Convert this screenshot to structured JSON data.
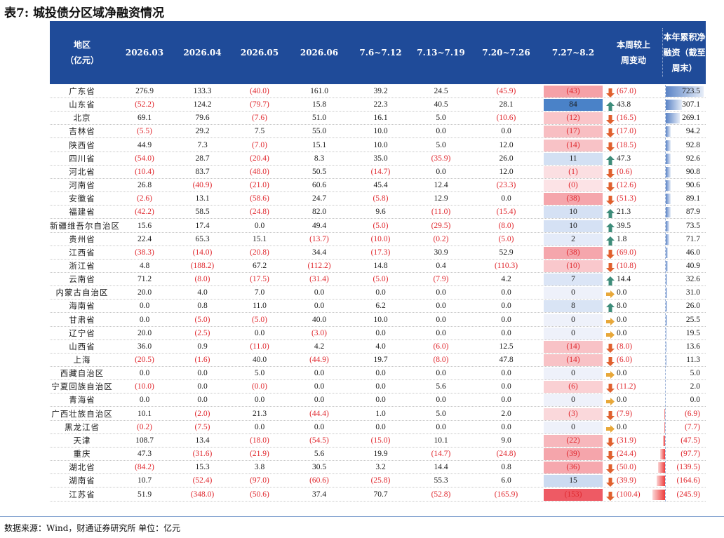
{
  "title": "表7: 城投债分区域净融资情况",
  "headers": [
    "地区\n（亿元）",
    "2026.03",
    "2026.04",
    "2026.05",
    "2026.06",
    "7.6~7.12",
    "7.13~7.19",
    "7.20~7.26",
    "7.27~8.2",
    "本周较上\n周变动",
    "本年累积净\n融资（截至\n周末）"
  ],
  "colors": {
    "header_bg": "#1f4b99",
    "negative": "#e0282e",
    "up_arrow": "#3d8c7a",
    "down_arrow": "#e0602e",
    "flat_arrow": "#e8a83a"
  },
  "rows": [
    {
      "region": "广东省",
      "v": [
        "276.9",
        "133.3",
        "(40.0)",
        "161.0",
        "39.2",
        "24.5",
        "(45.9)"
      ],
      "w": "(43)",
      "wn": -43,
      "dir": "down",
      "chg": "(67.0)",
      "ytd": "723.5",
      "yn": 723.5
    },
    {
      "region": "山东省",
      "v": [
        "(52.2)",
        "124.2",
        "(79.7)",
        "15.8",
        "22.3",
        "40.5",
        "28.1"
      ],
      "w": "84",
      "wn": 84,
      "dir": "up",
      "chg": "43.8",
      "ytd": "307.1",
      "yn": 307.1
    },
    {
      "region": "北京",
      "v": [
        "69.1",
        "79.6",
        "(7.6)",
        "51.0",
        "16.1",
        "5.0",
        "(10.6)"
      ],
      "w": "(12)",
      "wn": -12,
      "dir": "down",
      "chg": "(16.5)",
      "ytd": "269.1",
      "yn": 269.1
    },
    {
      "region": "吉林省",
      "v": [
        "(5.5)",
        "29.2",
        "7.5",
        "55.0",
        "10.0",
        "0.0",
        "0.0"
      ],
      "w": "(17)",
      "wn": -17,
      "dir": "down",
      "chg": "(17.0)",
      "ytd": "94.2",
      "yn": 94.2
    },
    {
      "region": "陕西省",
      "v": [
        "44.9",
        "7.3",
        "(7.0)",
        "15.1",
        "10.0",
        "5.0",
        "12.0"
      ],
      "w": "(14)",
      "wn": -14,
      "dir": "down",
      "chg": "(18.5)",
      "ytd": "92.8",
      "yn": 92.8
    },
    {
      "region": "四川省",
      "v": [
        "(54.0)",
        "28.7",
        "(20.4)",
        "8.3",
        "35.0",
        "(35.9)",
        "26.0"
      ],
      "w": "11",
      "wn": 11,
      "dir": "up",
      "chg": "47.3",
      "ytd": "92.6",
      "yn": 92.6
    },
    {
      "region": "河北省",
      "v": [
        "(10.4)",
        "83.7",
        "(48.0)",
        "50.5",
        "(14.7)",
        "0.0",
        "12.0"
      ],
      "w": "(1)",
      "wn": -1,
      "dir": "down",
      "chg": "(0.6)",
      "ytd": "90.8",
      "yn": 90.8
    },
    {
      "region": "河南省",
      "v": [
        "26.8",
        "(40.9)",
        "(21.0)",
        "60.6",
        "45.4",
        "12.4",
        "(23.3)"
      ],
      "w": "(0)",
      "wn": -0.3,
      "dir": "down",
      "chg": "(12.6)",
      "ytd": "90.6",
      "yn": 90.6
    },
    {
      "region": "安徽省",
      "v": [
        "(2.6)",
        "13.1",
        "(58.6)",
        "24.7",
        "(5.8)",
        "12.9",
        "0.0"
      ],
      "w": "(38)",
      "wn": -38,
      "dir": "down",
      "chg": "(51.3)",
      "ytd": "89.1",
      "yn": 89.1
    },
    {
      "region": "福建省",
      "v": [
        "(42.2)",
        "58.5",
        "(24.8)",
        "82.0",
        "9.6",
        "(11.0)",
        "(15.4)"
      ],
      "w": "10",
      "wn": 10,
      "dir": "up",
      "chg": "21.3",
      "ytd": "87.9",
      "yn": 87.9
    },
    {
      "region": "新疆维吾尔自治区",
      "v": [
        "15.6",
        "17.4",
        "0.0",
        "49.4",
        "(5.0)",
        "(29.5)",
        "(8.0)"
      ],
      "w": "10",
      "wn": 10,
      "dir": "up",
      "chg": "39.5",
      "ytd": "73.5",
      "yn": 73.5
    },
    {
      "region": "贵州省",
      "v": [
        "22.4",
        "65.3",
        "15.1",
        "(13.7)",
        "(10.0)",
        "(0.2)",
        "(5.0)"
      ],
      "w": "2",
      "wn": 2,
      "dir": "up",
      "chg": "1.8",
      "ytd": "71.7",
      "yn": 71.7
    },
    {
      "region": "江西省",
      "v": [
        "(38.3)",
        "(14.0)",
        "(20.8)",
        "34.4",
        "(17.3)",
        "30.9",
        "52.9"
      ],
      "w": "(38)",
      "wn": -38,
      "dir": "down",
      "chg": "(69.0)",
      "ytd": "46.0",
      "yn": 46.0
    },
    {
      "region": "浙江省",
      "v": [
        "4.8",
        "(188.2)",
        "67.2",
        "(112.2)",
        "14.8",
        "0.4",
        "(110.3)"
      ],
      "w": "(10)",
      "wn": -10,
      "dir": "down",
      "chg": "(10.8)",
      "ytd": "40.9",
      "yn": 40.9
    },
    {
      "region": "云南省",
      "v": [
        "71.2",
        "(8.0)",
        "(17.5)",
        "(31.4)",
        "(5.0)",
        "(7.9)",
        "4.2"
      ],
      "w": "7",
      "wn": 7,
      "dir": "up",
      "chg": "14.4",
      "ytd": "32.6",
      "yn": 32.6
    },
    {
      "region": "内蒙古自治区",
      "v": [
        "20.0",
        "4.0",
        "7.0",
        "0.0",
        "0.0",
        "0.0",
        "0.0"
      ],
      "w": "0",
      "wn": 0,
      "dir": "flat",
      "chg": "0.0",
      "ytd": "31.0",
      "yn": 31.0
    },
    {
      "region": "海南省",
      "v": [
        "0.0",
        "0.8",
        "11.0",
        "0.0",
        "6.2",
        "0.0",
        "0.0"
      ],
      "w": "8",
      "wn": 8,
      "dir": "up",
      "chg": "8.0",
      "ytd": "26.0",
      "yn": 26.0
    },
    {
      "region": "甘肃省",
      "v": [
        "0.0",
        "(5.0)",
        "(5.0)",
        "40.0",
        "10.0",
        "0.0",
        "0.0"
      ],
      "w": "0",
      "wn": 0,
      "dir": "flat",
      "chg": "0.0",
      "ytd": "25.5",
      "yn": 25.5
    },
    {
      "region": "辽宁省",
      "v": [
        "20.0",
        "(2.5)",
        "0.0",
        "(3.0)",
        "0.0",
        "0.0",
        "0.0"
      ],
      "w": "0",
      "wn": 0,
      "dir": "flat",
      "chg": "0.0",
      "ytd": "19.5",
      "yn": 19.5
    },
    {
      "region": "山西省",
      "v": [
        "36.0",
        "0.9",
        "(11.0)",
        "4.2",
        "4.0",
        "(6.0)",
        "12.5"
      ],
      "w": "(14)",
      "wn": -14,
      "dir": "down",
      "chg": "(8.0)",
      "ytd": "13.6",
      "yn": 13.6
    },
    {
      "region": "上海",
      "v": [
        "(20.5)",
        "(1.6)",
        "40.0",
        "(44.9)",
        "19.7",
        "(8.0)",
        "47.8"
      ],
      "w": "(14)",
      "wn": -14,
      "dir": "down",
      "chg": "(6.0)",
      "ytd": "11.3",
      "yn": 11.3
    },
    {
      "region": "西藏自治区",
      "v": [
        "0.0",
        "0.0",
        "5.0",
        "0.0",
        "0.0",
        "0.0",
        "0.0"
      ],
      "w": "0",
      "wn": 0,
      "dir": "flat",
      "chg": "0.0",
      "ytd": "5.0",
      "yn": 5.0
    },
    {
      "region": "宁夏回族自治区",
      "v": [
        "(10.0)",
        "0.0",
        "(0.0)",
        "0.0",
        "0.0",
        "5.6",
        "0.0"
      ],
      "w": "(6)",
      "wn": -6,
      "dir": "down",
      "chg": "(11.2)",
      "ytd": "2.0",
      "yn": 2.0
    },
    {
      "region": "青海省",
      "v": [
        "0.0",
        "0.0",
        "0.0",
        "0.0",
        "0.0",
        "0.0",
        "0.0"
      ],
      "w": "0",
      "wn": 0,
      "dir": "flat",
      "chg": "0.0",
      "ytd": "0.0",
      "yn": 0.0
    },
    {
      "region": "广西壮族自治区",
      "v": [
        "10.1",
        "(2.0)",
        "21.3",
        "(44.4)",
        "1.0",
        "5.0",
        "2.0"
      ],
      "w": "(3)",
      "wn": -3,
      "dir": "down",
      "chg": "(7.9)",
      "ytd": "(6.9)",
      "yn": -6.9
    },
    {
      "region": "黑龙江省",
      "v": [
        "(0.2)",
        "(7.5)",
        "0.0",
        "0.0",
        "0.0",
        "0.0",
        "0.0"
      ],
      "w": "0",
      "wn": 0,
      "dir": "flat",
      "chg": "0.0",
      "ytd": "(7.7)",
      "yn": -7.7
    },
    {
      "region": "天津",
      "v": [
        "108.7",
        "13.4",
        "(18.0)",
        "(54.5)",
        "(15.0)",
        "10.1",
        "9.0"
      ],
      "w": "(22)",
      "wn": -22,
      "dir": "down",
      "chg": "(31.9)",
      "ytd": "(47.5)",
      "yn": -47.5
    },
    {
      "region": "重庆",
      "v": [
        "47.3",
        "(31.6)",
        "(21.9)",
        "5.6",
        "19.9",
        "(14.7)",
        "(24.8)"
      ],
      "w": "(39)",
      "wn": -39,
      "dir": "down",
      "chg": "(24.4)",
      "ytd": "(97.7)",
      "yn": -97.7
    },
    {
      "region": "湖北省",
      "v": [
        "(84.2)",
        "15.3",
        "3.8",
        "30.5",
        "3.2",
        "14.4",
        "0.8"
      ],
      "w": "(36)",
      "wn": -36,
      "dir": "down",
      "chg": "(50.0)",
      "ytd": "(139.5)",
      "yn": -139.5
    },
    {
      "region": "湖南省",
      "v": [
        "10.7",
        "(52.4)",
        "(97.0)",
        "(60.6)",
        "(25.8)",
        "55.3",
        "6.0"
      ],
      "w": "15",
      "wn": 15,
      "dir": "down",
      "chg": "(39.9)",
      "ytd": "(164.6)",
      "yn": -164.6
    },
    {
      "region": "江苏省",
      "v": [
        "51.9",
        "(348.0)",
        "(50.6)",
        "37.4",
        "70.7",
        "(52.8)",
        "(165.9)"
      ],
      "w": "(153)",
      "wn": -153,
      "dir": "down",
      "chg": "(100.4)",
      "ytd": "(245.9)",
      "yn": -245.9
    }
  ],
  "source": "数据来源：Wind，财通证券研究所   单位：亿元"
}
